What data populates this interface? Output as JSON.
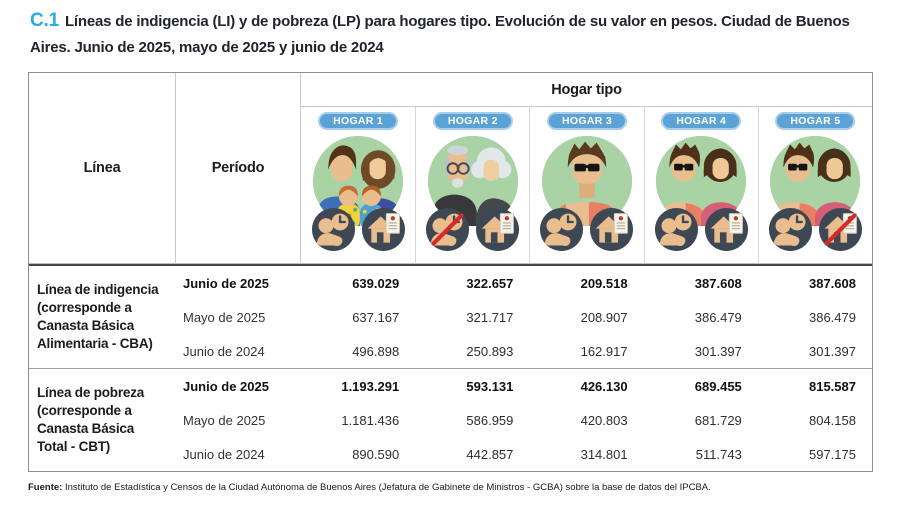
{
  "title": {
    "code": "C.1",
    "text": "Líneas de indigencia (LI) y de pobreza (LP) para hogares tipo. Evolución de su valor en pesos. Ciudad de Buenos Aires. Junio de 2025, mayo de 2025 y junio de 2024"
  },
  "table": {
    "col_linea": "Línea",
    "col_periodo": "Período",
    "col_hogar_tipo": "Hogar tipo",
    "households": [
      {
        "label": "HOGAR 1",
        "avatar": "family-4-avatar-icon",
        "worker_icon": "active-worker-icon",
        "housing_icon": "homeowner-icon"
      },
      {
        "label": "HOGAR 2",
        "avatar": "elderly-couple-avatar-icon",
        "worker_icon": "inactive-worker-icon",
        "housing_icon": "homeowner-icon"
      },
      {
        "label": "HOGAR 3",
        "avatar": "single-man-avatar-icon",
        "worker_icon": "active-worker-icon",
        "housing_icon": "homeowner-icon"
      },
      {
        "label": "HOGAR 4",
        "avatar": "young-couple-avatar-icon",
        "worker_icon": "active-worker-icon",
        "housing_icon": "homeowner-icon"
      },
      {
        "label": "HOGAR 5",
        "avatar": "young-couple-avatar-icon",
        "worker_icon": "active-worker-icon",
        "housing_icon": "renter-icon"
      }
    ],
    "groups": [
      {
        "linea": "Línea de indigencia (corresponde a Canasta Básica Alimentaria - CBA)",
        "rows": [
          {
            "period": "Junio de 2025",
            "bold": true,
            "values": [
              "639.029",
              "322.657",
              "209.518",
              "387.608",
              "387.608"
            ]
          },
          {
            "period": "Mayo de 2025",
            "bold": false,
            "values": [
              "637.167",
              "321.717",
              "208.907",
              "386.479",
              "386.479"
            ]
          },
          {
            "period": "Junio de 2024",
            "bold": false,
            "values": [
              "496.898",
              "250.893",
              "162.917",
              "301.397",
              "301.397"
            ]
          }
        ]
      },
      {
        "linea": "Línea de pobreza (corresponde a Canasta Básica Total - CBT)",
        "rows": [
          {
            "period": "Junio de 2025",
            "bold": true,
            "values": [
              "1.193.291",
              "593.131",
              "426.130",
              "689.455",
              "815.587"
            ]
          },
          {
            "period": "Mayo de 2025",
            "bold": false,
            "values": [
              "1.181.436",
              "586.959",
              "420.803",
              "681.729",
              "804.158"
            ]
          },
          {
            "period": "Junio de 2024",
            "bold": false,
            "values": [
              "890.590",
              "442.857",
              "314.801",
              "511.743",
              "597.175"
            ]
          }
        ]
      }
    ]
  },
  "footer": {
    "label": "Fuente:",
    "text": " Instituto de Estadística y Censos de la Ciudad Autónoma de Buenos Aires (Jefatura de Gabinete de Ministros - GCBA) sobre la base de datos del IPCBA."
  },
  "colors": {
    "accent_blue": "#29abe2",
    "badge_blue": "#5ba3d7",
    "avatar_green": "#a9d3a5",
    "icon_navy": "#3d4854",
    "slash_red": "#d32b28",
    "text_dark": "#1c1c1c"
  }
}
